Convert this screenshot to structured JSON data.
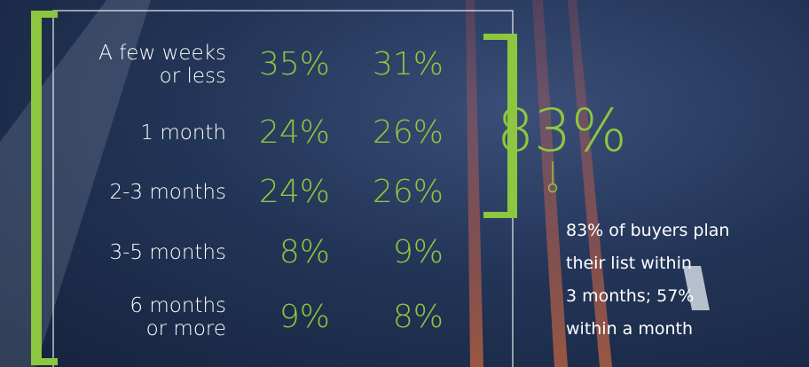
{
  "table": {
    "rows": [
      {
        "label": [
          "A few weeks",
          "or less"
        ],
        "values": [
          "35%",
          "31%"
        ]
      },
      {
        "label": [
          "1 month"
        ],
        "values": [
          "24%",
          "26%"
        ]
      },
      {
        "label": [
          "2-3 months"
        ],
        "values": [
          "24%",
          "26%"
        ]
      },
      {
        "label": [
          "3-5 months"
        ],
        "values": [
          "8%",
          "9%"
        ]
      },
      {
        "label": [
          "6 months",
          "or more"
        ],
        "values": [
          "9%",
          "8%"
        ]
      }
    ]
  },
  "callout": {
    "figure": "83%",
    "text": [
      "83% of buyers plan",
      "their list within",
      "3 months; 57%",
      "within a month"
    ]
  }
}
